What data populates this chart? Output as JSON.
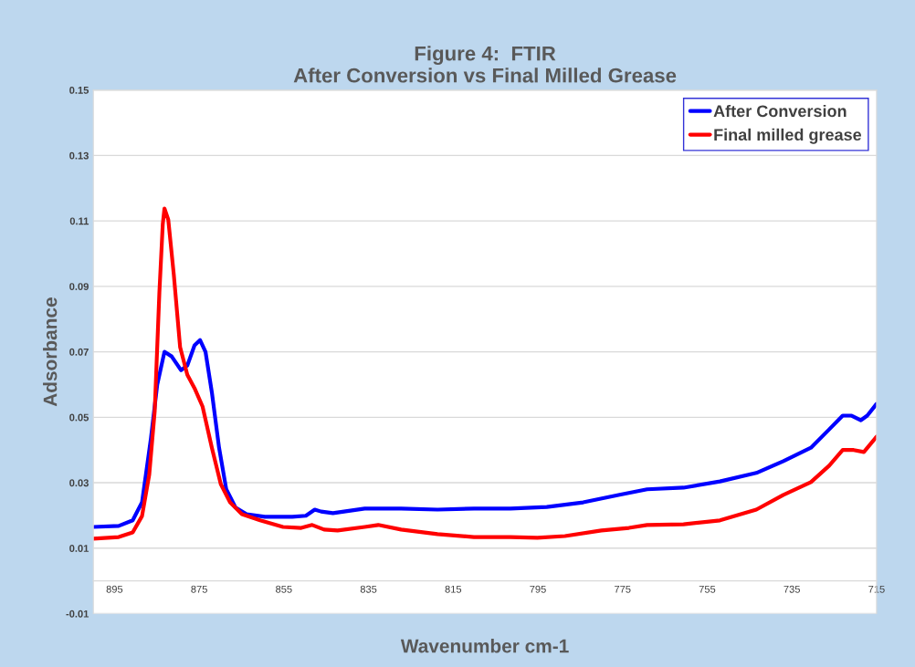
{
  "chart_data": {
    "type": "line",
    "title": "Figure 4:  FTIR\nAfter Conversion vs Final Milled Grease",
    "xlabel": "Wavenumber cm-1",
    "ylabel": "Adsorbance",
    "xlim": [
      900,
      715
    ],
    "xticks": [
      895,
      875,
      855,
      835,
      815,
      795,
      775,
      755,
      735,
      715
    ],
    "ylim": [
      -0.01,
      0.15
    ],
    "yticks": [
      0.15,
      0.13,
      0.11,
      0.09,
      0.07,
      0.05,
      0.03,
      0.01,
      -0.01
    ],
    "grid": "y",
    "legend": "top right",
    "marker": "none",
    "line_style": "solid",
    "series": [
      {
        "name": "After Conversion",
        "color": "#0000ff",
        "x": [
          900,
          894,
          890.7,
          888.5,
          886.4,
          884.9,
          883.2,
          881.5,
          879.3,
          877.8,
          876.1,
          874.8,
          873.5,
          872,
          870.3,
          868.6,
          866.4,
          863.8,
          859.5,
          853,
          849.8,
          847.7,
          846.2,
          843.4,
          835.9,
          827.3,
          818.7,
          810.1,
          801.5,
          792.9,
          784.3,
          775.7,
          769.2,
          760.6,
          752,
          743.4,
          737,
          730.5,
          726.2,
          723,
          720.9,
          718.7,
          717.2,
          715
        ],
        "values": [
          0.0165,
          0.0168,
          0.0185,
          0.024,
          0.0435,
          0.06,
          0.07,
          0.0686,
          0.0644,
          0.0658,
          0.072,
          0.0736,
          0.07,
          0.0576,
          0.0407,
          0.028,
          0.0224,
          0.0204,
          0.0196,
          0.0196,
          0.0199,
          0.0218,
          0.0212,
          0.0207,
          0.0221,
          0.0221,
          0.0218,
          0.0221,
          0.0221,
          0.0226,
          0.024,
          0.0263,
          0.028,
          0.0285,
          0.0304,
          0.033,
          0.0366,
          0.0407,
          0.0463,
          0.0505,
          0.0505,
          0.0491,
          0.0505,
          0.0541
        ]
      },
      {
        "name": "Final milled grease",
        "color": "#ff0000",
        "x": [
          900,
          894,
          890.7,
          888.5,
          886.8,
          885.5,
          884.4,
          883.6,
          883.2,
          882.3,
          881,
          879.5,
          877.8,
          876.1,
          874.2,
          872,
          869.9,
          867.7,
          864.9,
          860.6,
          855.2,
          850.9,
          848.3,
          845.5,
          842.3,
          835.9,
          832.7,
          827.3,
          818.7,
          810.1,
          801.5,
          795.1,
          788.6,
          780,
          773.5,
          769.2,
          760.6,
          752,
          743.4,
          737,
          730.5,
          726.2,
          723,
          720.4,
          718,
          715
        ],
        "values": [
          0.0129,
          0.0134,
          0.0148,
          0.0198,
          0.0324,
          0.0519,
          0.0881,
          0.109,
          0.1138,
          0.1104,
          0.0937,
          0.0714,
          0.063,
          0.0589,
          0.0533,
          0.0407,
          0.0296,
          0.024,
          0.0204,
          0.0185,
          0.0165,
          0.0162,
          0.0171,
          0.0157,
          0.0154,
          0.0165,
          0.0171,
          0.0157,
          0.0143,
          0.0134,
          0.0134,
          0.0132,
          0.0137,
          0.0154,
          0.0162,
          0.0171,
          0.0173,
          0.0185,
          0.0218,
          0.0263,
          0.0302,
          0.0352,
          0.04,
          0.04,
          0.0394,
          0.0441
        ]
      }
    ]
  }
}
